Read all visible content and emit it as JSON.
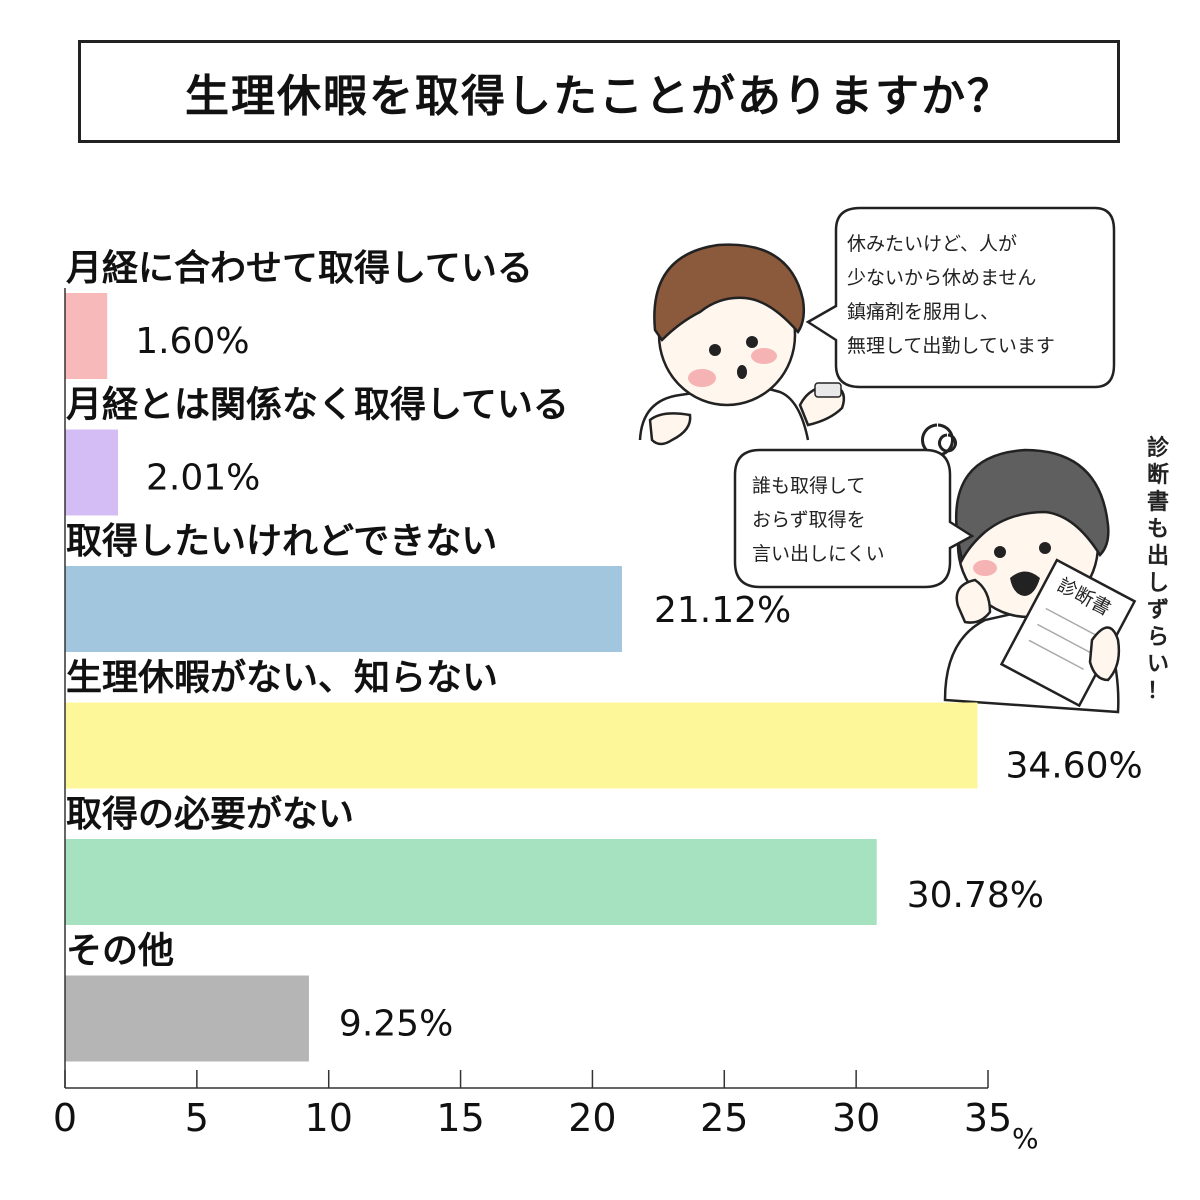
{
  "title": "生理休暇を取得したことがありますか？",
  "chart_data": {
    "type": "bar",
    "orientation": "horizontal",
    "categories": [
      "月経に合わせて取得している",
      "月経とは関係なく取得している",
      "取得したいけれどできない",
      "生理休暇がない、知らない",
      "取得の必要がない",
      "その他"
    ],
    "values": [
      1.6,
      2.01,
      21.12,
      34.6,
      30.78,
      9.25
    ],
    "value_labels": [
      "1.60%",
      "2.01%",
      "21.12%",
      "34.60%",
      "30.78%",
      "9.25%"
    ],
    "colors": [
      "#f8b9bb",
      "#d4bcf5",
      "#a3c6df",
      "#fef79a",
      "#a6e2c0",
      "#b5b5b5"
    ],
    "xlim": [
      0,
      35
    ],
    "xticks": [
      "0",
      "5",
      "10",
      "15",
      "20",
      "25",
      "30",
      "35"
    ],
    "xunit": "%",
    "grid": false
  },
  "illustration": {
    "bubble1_lines": [
      "休みたいけど、人が",
      "少ないから休めません",
      "鎮痛剤を服用し、",
      "無理して出勤しています"
    ],
    "bubble2_lines": [
      "誰も取得して",
      "おらず取得を",
      "言い出しにくい"
    ],
    "document_label": "診断書",
    "side_note": [
      "診",
      "断",
      "書",
      "も",
      "出",
      "し",
      "ず",
      "ら",
      "い",
      "！"
    ]
  }
}
